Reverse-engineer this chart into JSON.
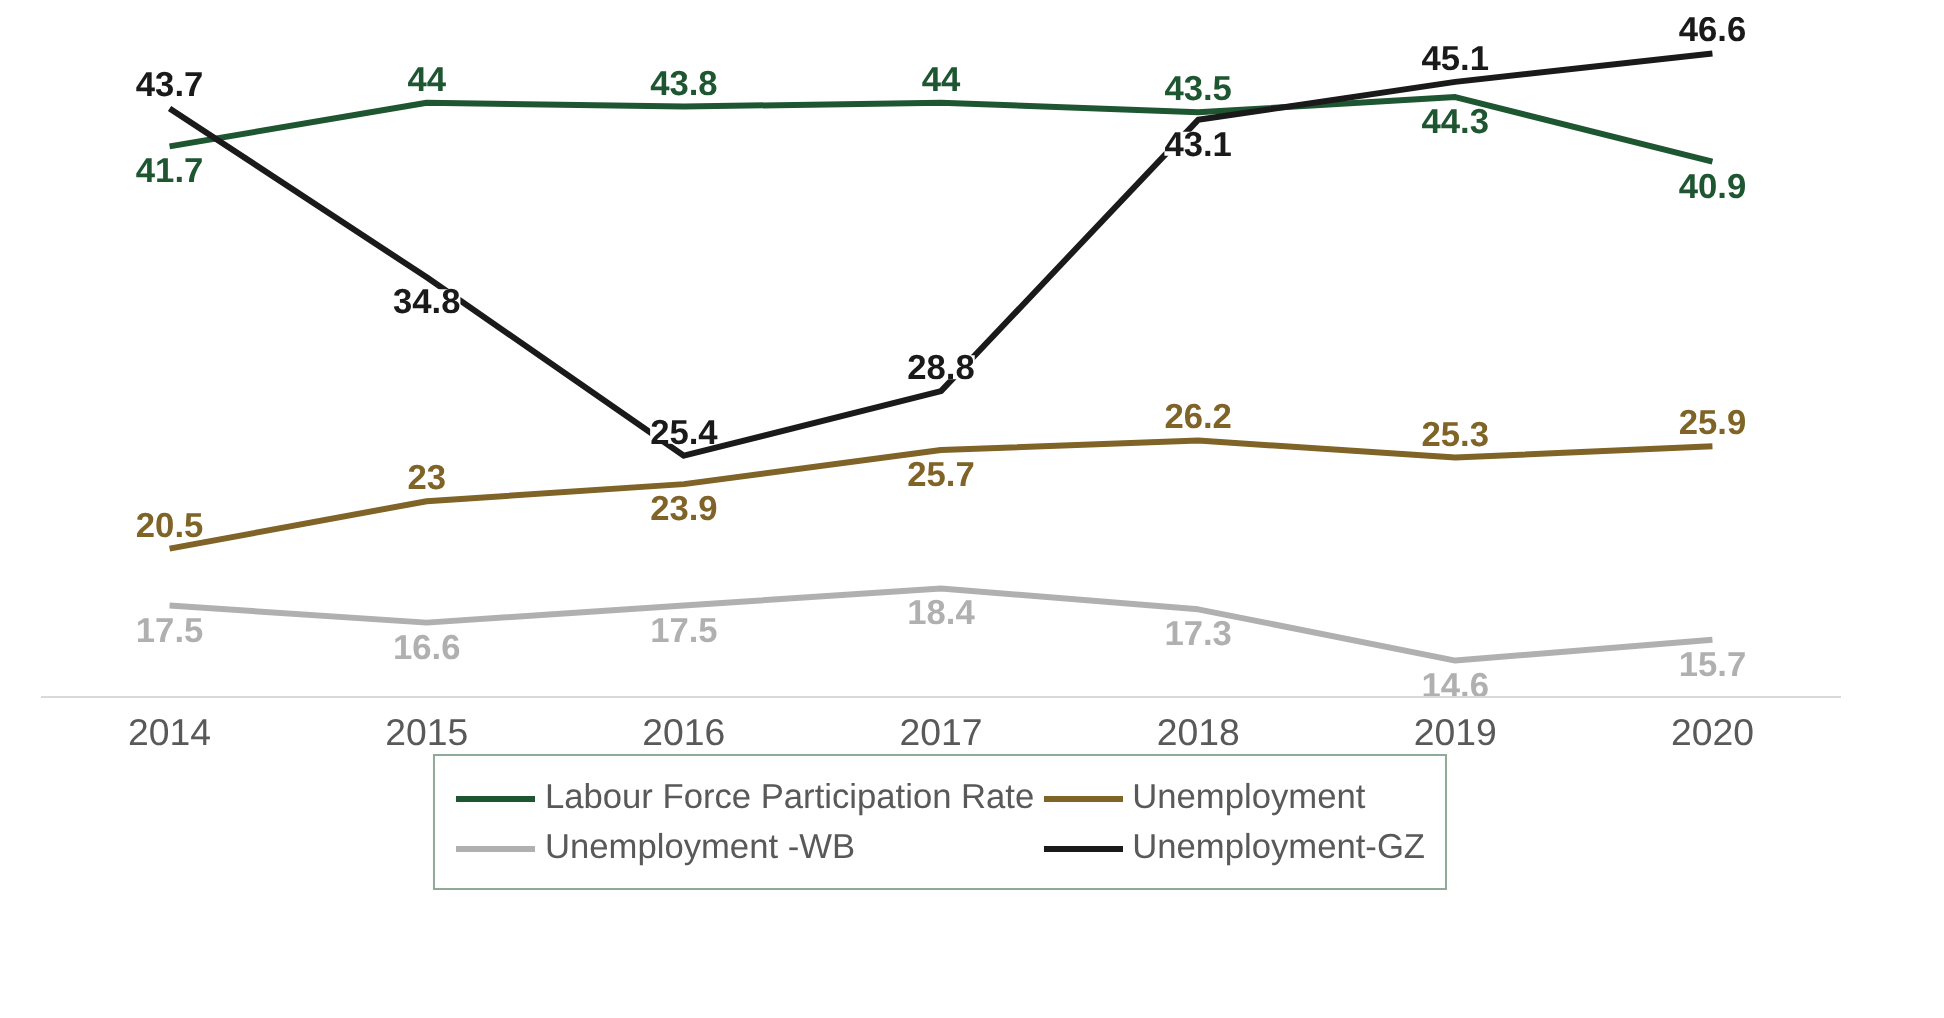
{
  "chart_data": {
    "type": "line",
    "categories": [
      "2014",
      "2015",
      "2016",
      "2017",
      "2018",
      "2019",
      "2020"
    ],
    "series": [
      {
        "name": "Labour Force Participation Rate",
        "color": "#1e5631",
        "values": [
          41.7,
          44,
          43.8,
          44,
          43.5,
          44.3,
          40.9
        ]
      },
      {
        "name": "Unemployment",
        "color": "#7f6327",
        "values": [
          20.5,
          23,
          23.9,
          25.7,
          26.2,
          25.3,
          25.9
        ]
      },
      {
        "name": "Unemployment -WB",
        "color": "#b0b0b0",
        "values": [
          17.5,
          16.6,
          17.5,
          18.4,
          17.3,
          14.6,
          15.7
        ]
      },
      {
        "name": "Unemployment-GZ",
        "color": "#1a1a1a",
        "values": [
          43.7,
          34.8,
          25.4,
          28.8,
          43.1,
          45.1,
          46.6
        ]
      }
    ],
    "tick_labels": "x",
    "grid": false,
    "legend": "bottom",
    "data_labels": true,
    "marker": "none",
    "line_style": "solid"
  }
}
